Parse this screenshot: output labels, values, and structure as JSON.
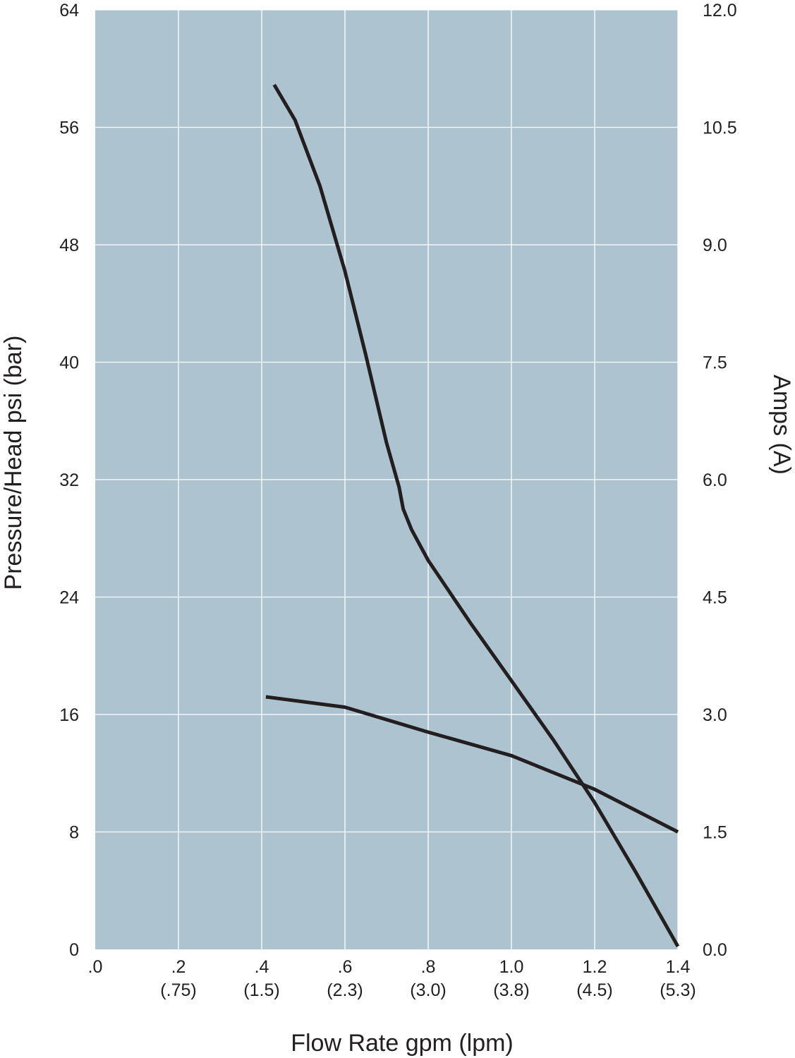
{
  "chart_data": {
    "type": "line",
    "title": "",
    "xlabel": "Flow Rate gpm (lpm)",
    "ylabel": "Pressure/Head psi (bar)",
    "y2label": "Amps (A)",
    "xlim": [
      0,
      1.4
    ],
    "ylim": [
      0,
      64
    ],
    "y2lim": [
      0,
      12
    ],
    "grid": true,
    "legend": "none",
    "colors": {
      "plot_bg": "#adc4d0",
      "grid": "#ffffff",
      "line": "#231f20",
      "text": "#231f20"
    },
    "x_ticks": [
      {
        "value": 0,
        "label": ".0",
        "sublabel": ""
      },
      {
        "value": 0.2,
        "label": ".2",
        "sublabel": "(.75)"
      },
      {
        "value": 0.4,
        "label": ".4",
        "sublabel": "(1.5)"
      },
      {
        "value": 0.6,
        "label": ".6",
        "sublabel": "(2.3)"
      },
      {
        "value": 0.8,
        "label": ".8",
        "sublabel": "(3.0)"
      },
      {
        "value": 1.0,
        "label": "1.0",
        "sublabel": "(3.8)"
      },
      {
        "value": 1.2,
        "label": "1.2",
        "sublabel": "(4.5)"
      },
      {
        "value": 1.4,
        "label": "1.4",
        "sublabel": "(5.3)"
      }
    ],
    "y_ticks": [
      {
        "value": 0,
        "label": "0"
      },
      {
        "value": 8,
        "label": "8"
      },
      {
        "value": 16,
        "label": "16"
      },
      {
        "value": 24,
        "label": "24"
      },
      {
        "value": 32,
        "label": "32"
      },
      {
        "value": 40,
        "label": "40"
      },
      {
        "value": 48,
        "label": "48"
      },
      {
        "value": 56,
        "label": "56"
      },
      {
        "value": 64,
        "label": "64"
      }
    ],
    "y2_ticks": [
      {
        "value": 0,
        "label": "0.0"
      },
      {
        "value": 1.5,
        "label": "1.5"
      },
      {
        "value": 3.0,
        "label": "3.0"
      },
      {
        "value": 4.5,
        "label": "4.5"
      },
      {
        "value": 6.0,
        "label": "6.0"
      },
      {
        "value": 7.5,
        "label": "7.5"
      },
      {
        "value": 9.0,
        "label": "9.0"
      },
      {
        "value": 10.5,
        "label": "10.5"
      },
      {
        "value": 12.0,
        "label": "12.0"
      }
    ],
    "series": [
      {
        "axis": "left",
        "x": [
          0.43,
          0.48,
          0.54,
          0.6,
          0.65,
          0.7,
          0.73,
          0.74,
          0.76,
          0.8,
          0.9,
          1.0,
          1.1,
          1.2,
          1.3,
          1.4
        ],
        "y": [
          58.9,
          56.5,
          52.0,
          46.2,
          40.5,
          34.5,
          31.5,
          30.0,
          28.6,
          26.5,
          22.3,
          18.3,
          14.3,
          10.0,
          5.2,
          0.2
        ]
      },
      {
        "axis": "left",
        "x": [
          0.41,
          0.6,
          0.8,
          1.0,
          1.2,
          1.4
        ],
        "y": [
          17.2,
          16.5,
          14.8,
          13.2,
          10.9,
          8.0
        ]
      }
    ]
  }
}
